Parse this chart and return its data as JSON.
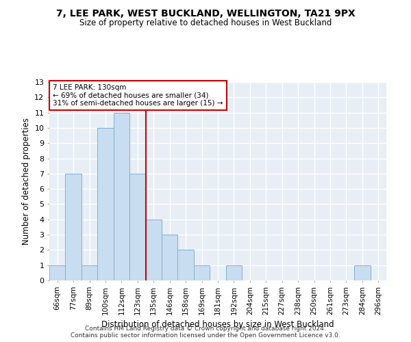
{
  "title": "7, LEE PARK, WEST BUCKLAND, WELLINGTON, TA21 9PX",
  "subtitle": "Size of property relative to detached houses in West Buckland",
  "xlabel": "Distribution of detached houses by size in West Buckland",
  "ylabel": "Number of detached properties",
  "bar_labels": [
    "66sqm",
    "77sqm",
    "89sqm",
    "100sqm",
    "112sqm",
    "123sqm",
    "135sqm",
    "146sqm",
    "158sqm",
    "169sqm",
    "181sqm",
    "192sqm",
    "204sqm",
    "215sqm",
    "227sqm",
    "238sqm",
    "250sqm",
    "261sqm",
    "273sqm",
    "284sqm",
    "296sqm"
  ],
  "bar_values": [
    1,
    7,
    1,
    10,
    11,
    7,
    4,
    3,
    2,
    1,
    0,
    1,
    0,
    0,
    0,
    0,
    0,
    0,
    0,
    1,
    0
  ],
  "bar_color": "#c9ddf0",
  "bar_edge_color": "#7bafd4",
  "background_color": "#e8eef6",
  "grid_color": "#ffffff",
  "vline_x": 5.5,
  "annotation_text_line1": "7 LEE PARK: 130sqm",
  "annotation_text_line2": "← 69% of detached houses are smaller (34)",
  "annotation_text_line3": "31% of semi-detached houses are larger (15) →",
  "annotation_box_color": "#ffffff",
  "annotation_border_color": "#cc0000",
  "vline_color": "#cc0000",
  "ylim": [
    0,
    13
  ],
  "yticks": [
    0,
    1,
    2,
    3,
    4,
    5,
    6,
    7,
    8,
    9,
    10,
    11,
    12,
    13
  ],
  "footer_line1": "Contains HM Land Registry data © Crown copyright and database right 2024.",
  "footer_line2": "Contains public sector information licensed under the Open Government Licence v3.0."
}
